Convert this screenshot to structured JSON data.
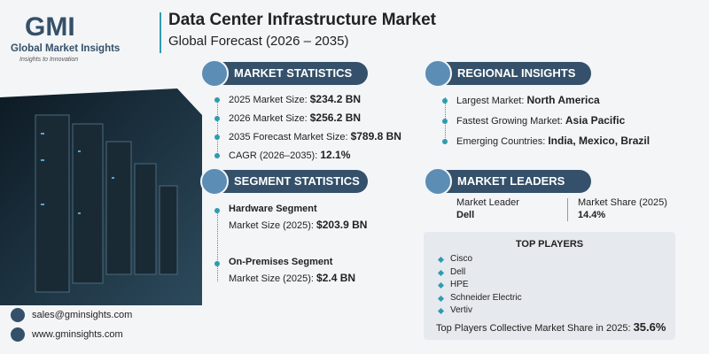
{
  "brand": {
    "logo": "GMI",
    "name": "Global Market Insights",
    "tagline": "Insights to Innovation"
  },
  "header": {
    "title": "Data Center Infrastructure Market",
    "subtitle": "Global Forecast (2026 – 2035)"
  },
  "market_statistics": {
    "heading": "MARKET STATISTICS",
    "items": [
      {
        "label": "2025 Market Size:",
        "value": "$234.2 BN"
      },
      {
        "label": "2026 Market Size:",
        "value": "$256.2 BN"
      },
      {
        "label": "2035 Forecast Market Size:",
        "value": "$789.8 BN"
      },
      {
        "label": "CAGR (2026–2035):",
        "value": "12.1%"
      }
    ]
  },
  "regional_insights": {
    "heading": "REGIONAL INSIGHTS",
    "items": [
      {
        "label": "Largest Market:",
        "value": "North America"
      },
      {
        "label": "Fastest Growing Market:",
        "value": "Asia Pacific"
      },
      {
        "label": "Emerging Countries:",
        "value": "India, Mexico, Brazil"
      }
    ]
  },
  "segment_statistics": {
    "heading": "SEGMENT STATISTICS",
    "items": [
      {
        "name": "Hardware Segment",
        "label": "Market Size (2025):",
        "value": "$203.9 BN"
      },
      {
        "name": "On-Premises Segment",
        "label": "Market Size (2025):",
        "value": "$2.4 BN"
      }
    ]
  },
  "market_leaders": {
    "heading": "MARKET LEADERS",
    "leader_label": "Market Leader",
    "leader": "Dell",
    "share_label": "Market Share (2025)",
    "share": "14.4%"
  },
  "top_players": {
    "heading": "TOP PLAYERS",
    "players": [
      "Cisco",
      "Dell",
      "HPE",
      "Schneider Electric",
      "Vertiv"
    ],
    "collective_label": "Top Players Collective Market Share in 2025:",
    "collective_value": "35.6%"
  },
  "contact": {
    "email": "sales@gminsights.com",
    "website": "www.gminsights.com"
  }
}
